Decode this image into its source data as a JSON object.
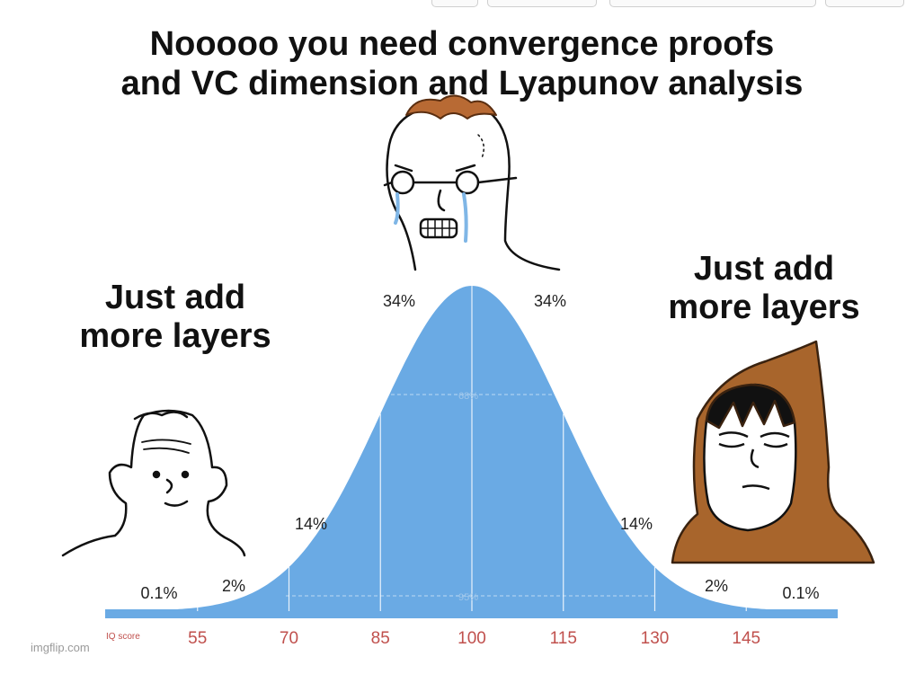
{
  "meme": {
    "top_caption_line1": "Nooooo you need convergence proofs",
    "top_caption_line2": "and VC dimension and Lyapunov analysis",
    "left_caption": "Just add more layers",
    "left_caption_line1": "Just add",
    "left_caption_line2": "more layers",
    "right_caption_line1": "Just add",
    "right_caption_line2": "more layers",
    "watermark": "imgflip.com"
  },
  "chart_data": {
    "type": "area",
    "x_axis_label": "IQ score",
    "x_ticks": [
      "55",
      "70",
      "85",
      "100",
      "115",
      "130",
      "145"
    ],
    "region_labels": {
      "far_left": "0.1%",
      "left_outer": "2%",
      "left_middle": "14%",
      "left_center": "34%",
      "right_center": "34%",
      "right_middle": "14%",
      "right_outer": "2%",
      "far_right": "0.1%"
    },
    "band_labels": {
      "inner": "68%",
      "outer": "95%"
    },
    "mean": 100,
    "sd": 15,
    "colors": {
      "fill": "#6aaae4",
      "axis_label": "#c0504d",
      "axis_bar": "#6aaae4"
    }
  }
}
